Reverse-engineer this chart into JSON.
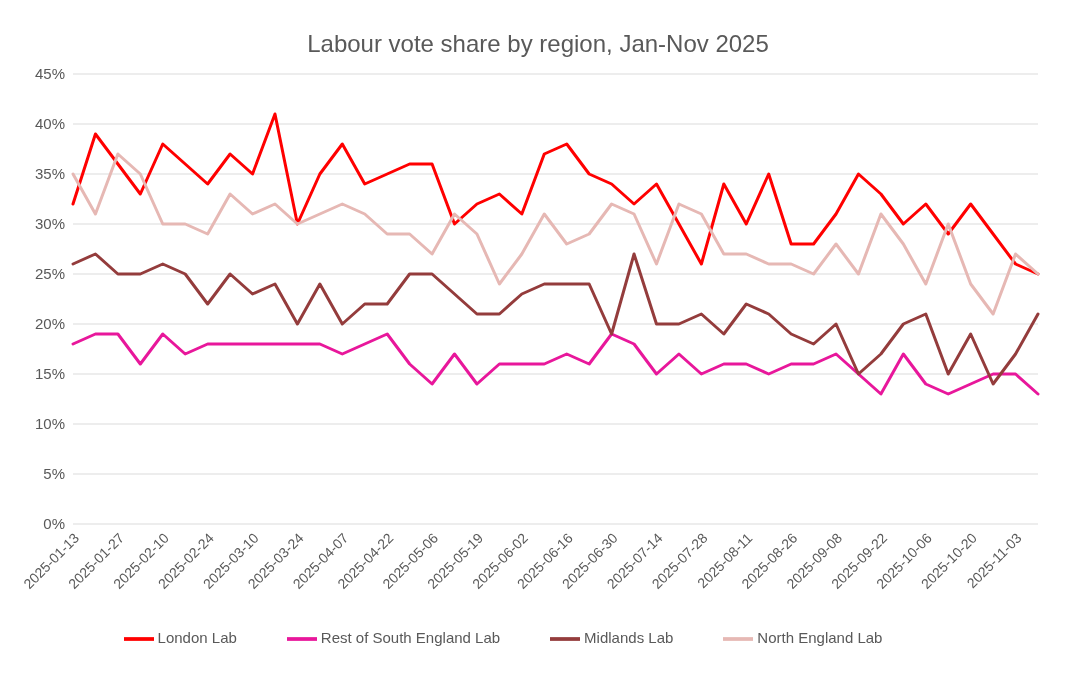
{
  "chart_data": {
    "type": "line",
    "title": "Labour vote share by region, Jan-Nov 2025",
    "categories": [
      "2025-01-13",
      null,
      "2025-01-27",
      null,
      "2025-02-10",
      null,
      "2025-02-24",
      null,
      "2025-03-10",
      null,
      "2025-03-24",
      null,
      "2025-04-07",
      null,
      "2025-04-22",
      null,
      "2025-05-06",
      null,
      "2025-05-19",
      null,
      "2025-06-02",
      null,
      "2025-06-16",
      null,
      "2025-06-30",
      null,
      "2025-07-14",
      null,
      "2025-07-28",
      null,
      "2025-08-11",
      null,
      "2025-08-26",
      null,
      "2025-09-08",
      null,
      "2025-09-22",
      null,
      "2025-10-06",
      null,
      "2025-10-20",
      null,
      "2025-11-03",
      null
    ],
    "series": [
      {
        "name": "London Lab",
        "color": "#ff0000",
        "values": [
          32,
          39,
          36,
          33,
          38,
          36,
          34,
          37,
          35,
          41,
          30,
          35,
          38,
          34,
          35,
          36,
          36,
          30,
          32,
          33,
          31,
          37,
          38,
          35,
          34,
          32,
          34,
          30,
          26,
          34,
          30,
          35,
          28,
          28,
          31,
          35,
          33,
          30,
          32,
          29,
          32,
          29,
          26,
          25
        ]
      },
      {
        "name": "Rest of South England Lab",
        "color": "#e8179b",
        "values": [
          18,
          19,
          19,
          16,
          19,
          17,
          18,
          18,
          18,
          18,
          18,
          18,
          17,
          18,
          19,
          16,
          14,
          17,
          14,
          16,
          16,
          16,
          17,
          16,
          19,
          18,
          15,
          17,
          15,
          16,
          16,
          15,
          16,
          16,
          17,
          15,
          13,
          17,
          14,
          13,
          14,
          15,
          15,
          13
        ]
      },
      {
        "name": "Midlands Lab",
        "color": "#943c3c",
        "values": [
          26,
          27,
          25,
          25,
          26,
          25,
          22,
          25,
          23,
          24,
          20,
          24,
          20,
          22,
          22,
          25,
          25,
          23,
          21,
          21,
          23,
          24,
          24,
          24,
          19,
          27,
          20,
          20,
          21,
          19,
          22,
          21,
          19,
          18,
          20,
          15,
          17,
          20,
          21,
          15,
          19,
          14,
          17,
          21
        ]
      },
      {
        "name": "North England Lab",
        "color": "#e6b8b4",
        "values": [
          35,
          31,
          37,
          35,
          30,
          30,
          29,
          33,
          31,
          32,
          30,
          31,
          32,
          31,
          29,
          29,
          27,
          31,
          29,
          24,
          27,
          31,
          28,
          29,
          32,
          31,
          26,
          32,
          31,
          27,
          27,
          26,
          26,
          25,
          28,
          25,
          31,
          28,
          24,
          30,
          24,
          21,
          27,
          25
        ]
      }
    ],
    "ylim": [
      0,
      45
    ],
    "yticks": [
      {
        "value": 0,
        "label": "0%"
      },
      {
        "value": 5,
        "label": "5%"
      },
      {
        "value": 10,
        "label": "10%"
      },
      {
        "value": 15,
        "label": "15%"
      },
      {
        "value": 20,
        "label": "20%"
      },
      {
        "value": 25,
        "label": "25%"
      },
      {
        "value": 30,
        "label": "30%"
      },
      {
        "value": 35,
        "label": "35%"
      },
      {
        "value": 40,
        "label": "40%"
      },
      {
        "value": 45,
        "label": "45%"
      }
    ],
    "grid": "y",
    "legend": "bottom",
    "marker": "none",
    "line_style": "solid"
  }
}
